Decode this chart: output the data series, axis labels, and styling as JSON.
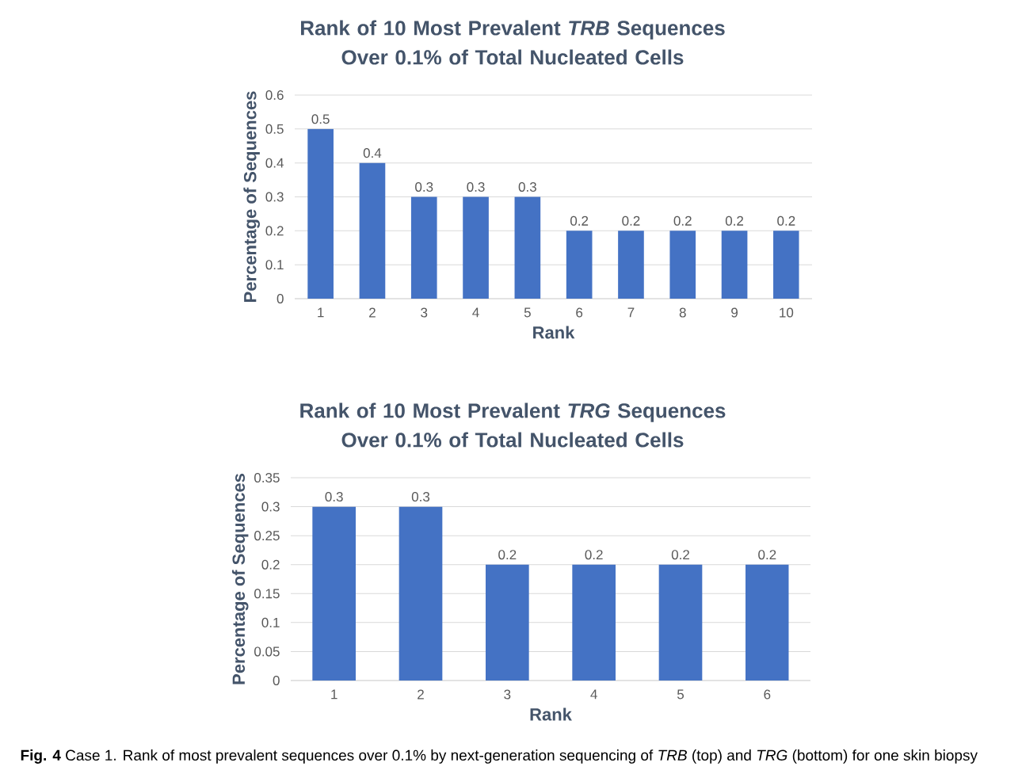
{
  "chart_data": [
    {
      "type": "bar",
      "title": "Rank of 10 Most Prevalent *TRB* Sequences Over 0.1% of Total Nucleated Cells",
      "xlabel": "Rank",
      "ylabel": "Percentage of Sequences",
      "categories": [
        "1",
        "2",
        "3",
        "4",
        "5",
        "6",
        "7",
        "8",
        "9",
        "10"
      ],
      "values": [
        0.5,
        0.4,
        0.3,
        0.3,
        0.3,
        0.2,
        0.2,
        0.2,
        0.2,
        0.2
      ],
      "color": "#4472c4",
      "ylim": [
        0,
        0.6
      ],
      "yticks": [
        0,
        0.1,
        0.2,
        0.3,
        0.4,
        0.5,
        0.6
      ],
      "grid": "y",
      "data_labels": true
    },
    {
      "type": "bar",
      "title": "Rank of 10 Most Prevalent *TRG* Sequences Over 0.1% of Total Nucleated Cells",
      "xlabel": "Rank",
      "ylabel": "Percentage of Sequences",
      "categories": [
        "1",
        "2",
        "3",
        "4",
        "5",
        "6"
      ],
      "values": [
        0.3,
        0.3,
        0.2,
        0.2,
        0.2,
        0.2
      ],
      "color": "#4472c4",
      "ylim": [
        0,
        0.35
      ],
      "yticks": [
        0,
        0.05,
        0.1,
        0.15,
        0.2,
        0.25,
        0.3,
        0.35
      ],
      "grid": "y",
      "data_labels": true,
      "annotations": [
        "**Fig. 4** Case 1. Rank of most prevalent sequences over 0.1% by next-generation sequencing of *TRB* (top) and *TRG* (bottom) for one skin biopsy"
      ]
    }
  ]
}
